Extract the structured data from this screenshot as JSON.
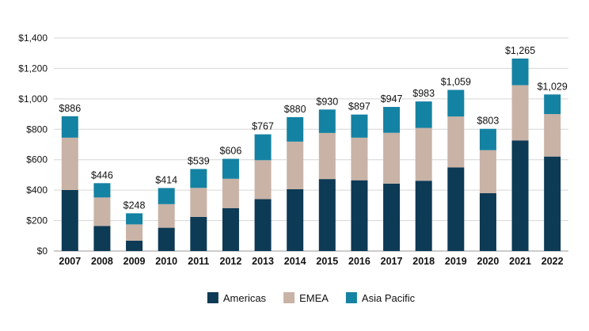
{
  "chart_data": {
    "type": "bar",
    "stacked": true,
    "title": "",
    "xlabel": "",
    "ylabel": "",
    "categories": [
      "2007",
      "2008",
      "2009",
      "2010",
      "2011",
      "2012",
      "2013",
      "2014",
      "2015",
      "2016",
      "2017",
      "2018",
      "2019",
      "2020",
      "2021",
      "2022"
    ],
    "series": [
      {
        "name": "Americas",
        "color": "#0d3a55",
        "values": [
          401,
          165,
          68,
          153,
          224,
          282,
          341,
          406,
          473,
          465,
          443,
          462,
          549,
          380,
          727,
          621
        ]
      },
      {
        "name": "EMEA",
        "color": "#c9b3a6",
        "values": [
          344,
          187,
          107,
          155,
          191,
          193,
          256,
          313,
          303,
          280,
          334,
          347,
          335,
          283,
          363,
          279
        ]
      },
      {
        "name": "Asia Pacific",
        "color": "#1482a3",
        "values": [
          141,
          94,
          73,
          106,
          124,
          131,
          170,
          161,
          154,
          152,
          170,
          174,
          175,
          140,
          175,
          129
        ]
      }
    ],
    "totals": [
      "$886",
      "$446",
      "$248",
      "$414",
      "$539",
      "$606",
      "$767",
      "$880",
      "$930",
      "$897",
      "$947",
      "$983",
      "$1,059",
      "$803",
      "$1,265",
      "$1,029"
    ],
    "y_ticks": [
      0,
      200,
      400,
      600,
      800,
      1000,
      1200,
      1400
    ],
    "y_tick_labels": [
      "$0",
      "$200",
      "$400",
      "$600",
      "$800",
      "$1,000",
      "$1,200",
      "$1,400"
    ],
    "ylim": [
      0,
      1400
    ],
    "grid": true,
    "legend_position": "bottom-center"
  }
}
